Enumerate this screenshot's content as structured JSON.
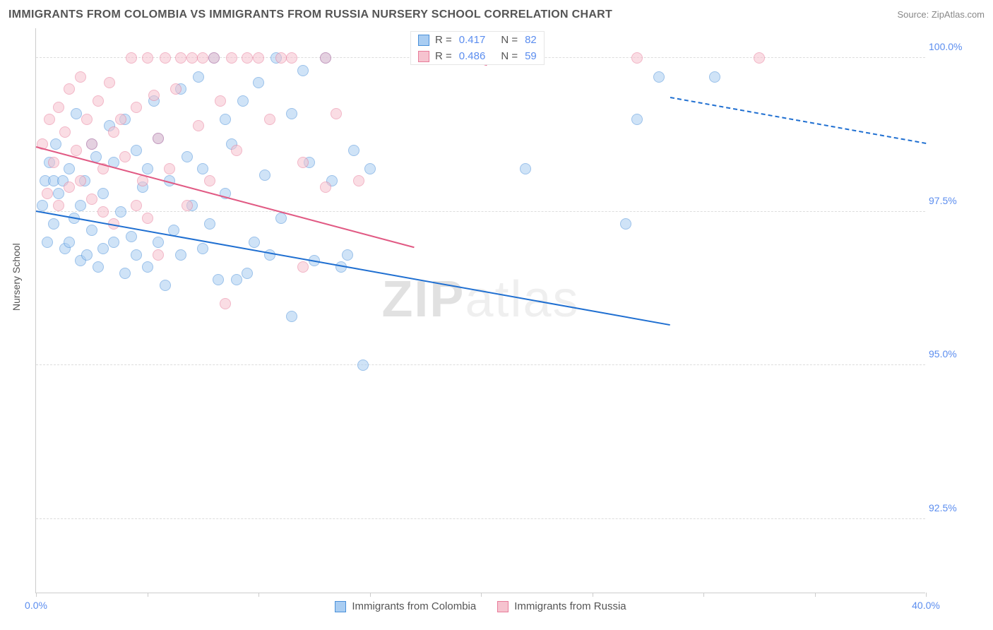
{
  "title": "IMMIGRANTS FROM COLOMBIA VS IMMIGRANTS FROM RUSSIA NURSERY SCHOOL CORRELATION CHART",
  "source": "Source: ZipAtlas.com",
  "watermark_main": "ZIP",
  "watermark_sub": "atlas",
  "chart": {
    "type": "scatter",
    "background_color": "#ffffff",
    "grid_color": "#dddddd",
    "axis_color": "#cccccc",
    "tick_label_color": "#5b8def",
    "y_label": "Nursery School",
    "y_label_color": "#555555",
    "xlim": [
      0,
      40
    ],
    "ylim": [
      91.3,
      100.5
    ],
    "x_ticks": [
      0,
      5,
      10,
      15,
      20,
      25,
      30,
      35,
      40
    ],
    "x_tick_labels": {
      "0": "0.0%",
      "40": "40.0%"
    },
    "y_ticks": [
      92.5,
      95.0,
      97.5,
      100.0
    ],
    "y_tick_labels": [
      "92.5%",
      "95.0%",
      "97.5%",
      "100.0%"
    ],
    "marker_radius": 8,
    "marker_opacity": 0.55,
    "series": [
      {
        "name": "Immigrants from Colombia",
        "fill": "#a9cdf2",
        "stroke": "#4a90d9",
        "line_color": "#1f6fd1",
        "points": [
          [
            0.3,
            97.6
          ],
          [
            0.4,
            98.0
          ],
          [
            0.5,
            97.0
          ],
          [
            0.6,
            98.3
          ],
          [
            0.8,
            98.0
          ],
          [
            0.8,
            97.3
          ],
          [
            0.9,
            98.6
          ],
          [
            1.0,
            97.8
          ],
          [
            1.2,
            98.0
          ],
          [
            1.3,
            96.9
          ],
          [
            1.5,
            97.0
          ],
          [
            1.5,
            98.2
          ],
          [
            1.7,
            97.4
          ],
          [
            1.8,
            99.1
          ],
          [
            2.0,
            97.6
          ],
          [
            2.0,
            96.7
          ],
          [
            2.2,
            98.0
          ],
          [
            2.3,
            96.8
          ],
          [
            2.5,
            98.6
          ],
          [
            2.5,
            97.2
          ],
          [
            2.7,
            98.4
          ],
          [
            2.8,
            96.6
          ],
          [
            3.0,
            97.8
          ],
          [
            3.0,
            96.9
          ],
          [
            3.3,
            98.9
          ],
          [
            3.5,
            97.0
          ],
          [
            3.5,
            98.3
          ],
          [
            3.8,
            97.5
          ],
          [
            4.0,
            96.5
          ],
          [
            4.0,
            99.0
          ],
          [
            4.3,
            97.1
          ],
          [
            4.5,
            98.5
          ],
          [
            4.5,
            96.8
          ],
          [
            4.8,
            97.9
          ],
          [
            5.0,
            98.2
          ],
          [
            5.0,
            96.6
          ],
          [
            5.3,
            99.3
          ],
          [
            5.5,
            97.0
          ],
          [
            5.5,
            98.7
          ],
          [
            5.8,
            96.3
          ],
          [
            6.0,
            98.0
          ],
          [
            6.2,
            97.2
          ],
          [
            6.5,
            99.5
          ],
          [
            6.5,
            96.8
          ],
          [
            6.8,
            98.4
          ],
          [
            7.0,
            97.6
          ],
          [
            7.3,
            99.7
          ],
          [
            7.5,
            96.9
          ],
          [
            7.5,
            98.2
          ],
          [
            7.8,
            97.3
          ],
          [
            8.0,
            100.0
          ],
          [
            8.2,
            96.4
          ],
          [
            8.5,
            99.0
          ],
          [
            8.5,
            97.8
          ],
          [
            8.8,
            98.6
          ],
          [
            9.0,
            96.4
          ],
          [
            9.3,
            99.3
          ],
          [
            9.5,
            96.5
          ],
          [
            9.8,
            97.0
          ],
          [
            10.0,
            99.6
          ],
          [
            10.3,
            98.1
          ],
          [
            10.5,
            96.8
          ],
          [
            10.8,
            100.0
          ],
          [
            11.0,
            97.4
          ],
          [
            11.5,
            99.1
          ],
          [
            11.5,
            95.8
          ],
          [
            12.0,
            99.8
          ],
          [
            12.3,
            98.3
          ],
          [
            12.5,
            96.7
          ],
          [
            13.0,
            100.0
          ],
          [
            13.3,
            98.0
          ],
          [
            13.7,
            96.6
          ],
          [
            14.0,
            96.8
          ],
          [
            14.3,
            98.5
          ],
          [
            14.7,
            95.0
          ],
          [
            15.0,
            98.2
          ],
          [
            20.0,
            100.0
          ],
          [
            22.0,
            98.2
          ],
          [
            26.5,
            97.3
          ],
          [
            27.0,
            99.0
          ],
          [
            28.0,
            99.7
          ],
          [
            30.5,
            99.7
          ]
        ],
        "trend": {
          "y_at_x0": 97.5,
          "y_at_xmax": 100.1,
          "solid_until_x": 28.5
        },
        "stats": {
          "R_label": "R =",
          "R": "0.417",
          "N_label": "N =",
          "N": "82"
        }
      },
      {
        "name": "Immigrants from Russia",
        "fill": "#f6c3cf",
        "stroke": "#e87c9a",
        "line_color": "#e15a84",
        "points": [
          [
            0.3,
            98.6
          ],
          [
            0.5,
            97.8
          ],
          [
            0.6,
            99.0
          ],
          [
            0.8,
            98.3
          ],
          [
            1.0,
            99.2
          ],
          [
            1.0,
            97.6
          ],
          [
            1.3,
            98.8
          ],
          [
            1.5,
            99.5
          ],
          [
            1.5,
            97.9
          ],
          [
            1.8,
            98.5
          ],
          [
            2.0,
            99.7
          ],
          [
            2.0,
            98.0
          ],
          [
            2.3,
            99.0
          ],
          [
            2.5,
            97.7
          ],
          [
            2.5,
            98.6
          ],
          [
            2.8,
            99.3
          ],
          [
            3.0,
            98.2
          ],
          [
            3.0,
            97.5
          ],
          [
            3.3,
            99.6
          ],
          [
            3.5,
            98.8
          ],
          [
            3.5,
            97.3
          ],
          [
            3.8,
            99.0
          ],
          [
            4.0,
            98.4
          ],
          [
            4.3,
            100.0
          ],
          [
            4.5,
            97.6
          ],
          [
            4.5,
            99.2
          ],
          [
            4.8,
            98.0
          ],
          [
            5.0,
            100.0
          ],
          [
            5.0,
            97.4
          ],
          [
            5.3,
            99.4
          ],
          [
            5.5,
            96.8
          ],
          [
            5.5,
            98.7
          ],
          [
            5.8,
            100.0
          ],
          [
            6.0,
            98.2
          ],
          [
            6.3,
            99.5
          ],
          [
            6.5,
            100.0
          ],
          [
            6.8,
            97.6
          ],
          [
            7.0,
            100.0
          ],
          [
            7.3,
            98.9
          ],
          [
            7.5,
            100.0
          ],
          [
            7.8,
            98.0
          ],
          [
            8.0,
            100.0
          ],
          [
            8.3,
            99.3
          ],
          [
            8.5,
            96.0
          ],
          [
            8.8,
            100.0
          ],
          [
            9.0,
            98.5
          ],
          [
            9.5,
            100.0
          ],
          [
            10.0,
            100.0
          ],
          [
            10.5,
            99.0
          ],
          [
            11.0,
            100.0
          ],
          [
            11.5,
            100.0
          ],
          [
            12.0,
            98.3
          ],
          [
            12.0,
            96.6
          ],
          [
            13.0,
            100.0
          ],
          [
            13.0,
            97.9
          ],
          [
            13.5,
            99.1
          ],
          [
            14.5,
            98.0
          ],
          [
            27.0,
            100.0
          ],
          [
            32.5,
            100.0
          ]
        ],
        "trend": {
          "y_at_x0": 98.55,
          "y_at_xmax": 102.4,
          "solid_until_x": 17.0
        },
        "stats": {
          "R_label": "R =",
          "R": "0.486",
          "N_label": "N =",
          "N": "59"
        }
      }
    ]
  }
}
